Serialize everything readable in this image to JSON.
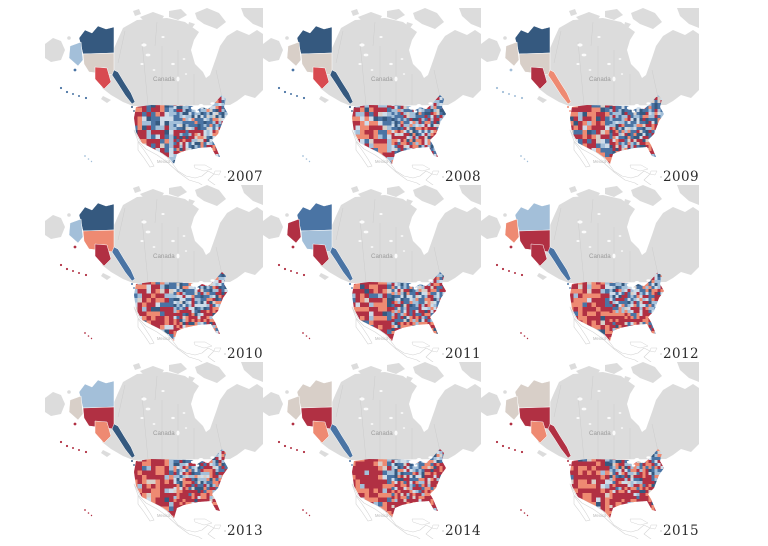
{
  "figure": {
    "type": "small-multiples-choropleth",
    "region": "North America — United States counties by year",
    "map_labels": {
      "canada": "Canada",
      "mexico": "Mexico"
    }
  },
  "palette": {
    "darkBlue": "#35597f",
    "midBlue": "#4a74a4",
    "lightBlue": "#a3bfd9",
    "paleBlue": "#cfdce9",
    "salmon": "#ee8a72",
    "brightRed": "#d84a50",
    "red": "#b13043",
    "noData": "#d8cfc8",
    "land": "#dcdcdc",
    "landStroke": "#d4d4d4",
    "canadaLabel": "#9c9c9c",
    "mexicoLabel": "#b8b8b8",
    "yearLabel": "#2d2d2d",
    "ocean": "#ffffff"
  },
  "years": [
    {
      "label": "2007",
      "red_share": 0.34,
      "alaska": {
        "north": "darkBlue",
        "west": "lightBlue",
        "center": "noData",
        "south": "brightRed",
        "panhandle": "darkBlue",
        "aleutians": "midBlue",
        "hawaii": "lightBlue"
      }
    },
    {
      "label": "2008",
      "red_share": 0.4,
      "alaska": {
        "north": "darkBlue",
        "west": "noData",
        "center": "noData",
        "south": "brightRed",
        "panhandle": "darkBlue",
        "aleutians": "midBlue",
        "hawaii": "lightBlue"
      }
    },
    {
      "label": "2009",
      "red_share": 0.43,
      "alaska": {
        "north": "darkBlue",
        "west": "noData",
        "center": "noData",
        "south": "red",
        "panhandle": "salmon",
        "aleutians": "lightBlue",
        "hawaii": "lightBlue"
      }
    },
    {
      "label": "2010",
      "red_share": 0.52,
      "alaska": {
        "north": "darkBlue",
        "west": "lightBlue",
        "center": "salmon",
        "south": "red",
        "panhandle": "midBlue",
        "aleutians": "red",
        "hawaii": "red"
      }
    },
    {
      "label": "2011",
      "red_share": 0.52,
      "alaska": {
        "north": "midBlue",
        "west": "red",
        "center": "lightBlue",
        "south": "red",
        "panhandle": "midBlue",
        "aleutians": "red",
        "hawaii": "red"
      }
    },
    {
      "label": "2012",
      "red_share": 0.62,
      "alaska": {
        "north": "lightBlue",
        "west": "salmon",
        "center": "red",
        "south": "red",
        "panhandle": "midBlue",
        "aleutians": "red",
        "hawaii": "red"
      }
    },
    {
      "label": "2013",
      "red_share": 0.66,
      "alaska": {
        "north": "lightBlue",
        "west": "noData",
        "center": "red",
        "south": "salmon",
        "panhandle": "darkBlue",
        "aleutians": "red",
        "hawaii": "red"
      }
    },
    {
      "label": "2014",
      "red_share": 0.72,
      "alaska": {
        "north": "noData",
        "west": "noData",
        "center": "red",
        "south": "salmon",
        "panhandle": "midBlue",
        "aleutians": "red",
        "hawaii": "red"
      }
    },
    {
      "label": "2015",
      "red_share": 0.76,
      "alaska": {
        "north": "noData",
        "west": "noData",
        "center": "red",
        "south": "salmon",
        "panhandle": "red",
        "aleutians": "red",
        "hawaii": "red"
      }
    }
  ]
}
